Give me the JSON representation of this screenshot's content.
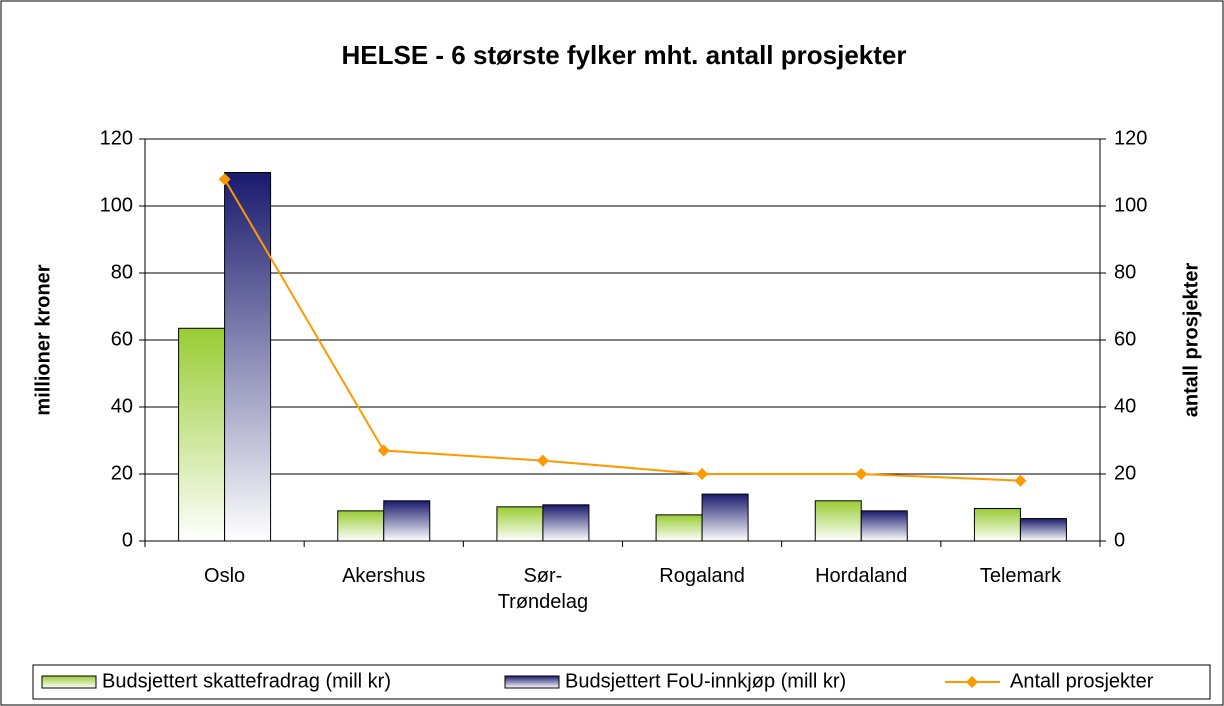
{
  "chart_data": {
    "type": "bar",
    "title": "HELSE - 6 største fylker mht. antall prosjekter",
    "y_label": "millioner kroner",
    "y2_label": "antall prosjekter",
    "categories": [
      "Oslo",
      "Akershus",
      "Sør-Trøndelag",
      "Rogaland",
      "Hordaland",
      "Telemark"
    ],
    "series": [
      {
        "name": "Budsjettert skattefradrag (mill kr)",
        "color": "#99cc33",
        "values": [
          63.5,
          9,
          10.2,
          7.8,
          12,
          9.7
        ]
      },
      {
        "name": "Budsjettert FoU-innkjøp (mill kr)",
        "color": "#1a1a6e",
        "values": [
          110,
          12,
          10.8,
          14,
          9,
          6.7
        ]
      },
      {
        "name": "Antall prosjekter",
        "color": "#ff9900",
        "type": "line",
        "axis": "y2",
        "values": [
          108,
          27,
          24,
          20,
          20,
          18
        ]
      }
    ],
    "ylim": [
      0,
      120
    ],
    "yticks": [
      0,
      20,
      40,
      60,
      80,
      100,
      120
    ],
    "y2lim": [
      0,
      120
    ],
    "y2ticks": [
      0,
      20,
      40,
      60,
      80,
      100,
      120
    ],
    "grid": true,
    "legend": "bottom"
  }
}
